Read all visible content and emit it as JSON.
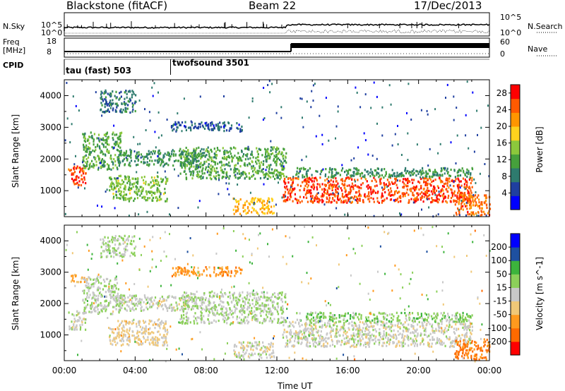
{
  "header": {
    "station": "Blackstone (fitACF)",
    "beam": "Beam 22",
    "date": "17/Dec/2013"
  },
  "summary_panel": {
    "nsky_label": "N.Sky",
    "nsearch_label": "N.Search",
    "freq_label_1": "Freq",
    "freq_label_2": "[MHz]",
    "nave_label": "Nave",
    "cpid_label": "CPID",
    "noise_ticks": [
      "10^5",
      "10^0"
    ],
    "noise_right_ticks": [
      "10^5",
      "10^0"
    ],
    "freq_ticks": [
      "18",
      "8"
    ],
    "nave_ticks": [
      "60",
      "0"
    ],
    "cpid_segments": [
      {
        "name": "tau (fast) 503",
        "start_hour": 0
      },
      {
        "name": "twofsound 3501",
        "start_hour": 6
      }
    ]
  },
  "chart_data": [
    {
      "type": "heatmap",
      "title": "",
      "xlabel": "Time UT",
      "ylabel": "Slant Range [km]",
      "xlim": [
        0,
        24
      ],
      "ylim": [
        180,
        4500
      ],
      "x_ticks": [
        "00:00",
        "04:00",
        "08:00",
        "12:00",
        "16:00",
        "20:00",
        "00:00"
      ],
      "y_ticks": [
        1000,
        2000,
        3000,
        4000
      ],
      "colorbar": {
        "label": "Power [dB]",
        "ticks": [
          4,
          8,
          12,
          16,
          20,
          24,
          28
        ],
        "range": [
          0,
          30
        ],
        "colors": [
          "#0000ff",
          "#1f3fa0",
          "#2e7b6e",
          "#46a03c",
          "#8cc83c",
          "#ffd21e",
          "#ff9600",
          "#ff5a00",
          "#ff0000"
        ]
      },
      "regions": [
        {
          "t0": 0.2,
          "t1": 1.2,
          "r0": 1200,
          "r1": 1800,
          "value": 26
        },
        {
          "t0": 1.0,
          "t1": 3.2,
          "r0": 1700,
          "r1": 2900,
          "value": 12
        },
        {
          "t0": 2.5,
          "t1": 5.8,
          "r0": 700,
          "r1": 1500,
          "value": 14
        },
        {
          "t0": 3.0,
          "t1": 7.5,
          "r0": 1800,
          "r1": 2300,
          "value": 10
        },
        {
          "t0": 6.0,
          "t1": 10.0,
          "r0": 2900,
          "r1": 3200,
          "value": 6
        },
        {
          "t0": 6.5,
          "t1": 12.5,
          "r0": 1400,
          "r1": 2400,
          "value": 12
        },
        {
          "t0": 9.5,
          "t1": 11.8,
          "r0": 300,
          "r1": 800,
          "value": 20
        },
        {
          "t0": 12.3,
          "t1": 23.0,
          "r0": 650,
          "r1": 1450,
          "value": 26
        },
        {
          "t0": 13.0,
          "t1": 23.0,
          "r0": 1450,
          "r1": 1750,
          "value": 10
        },
        {
          "t0": 22.0,
          "t1": 24.0,
          "r0": 250,
          "r1": 900,
          "value": 24
        },
        {
          "t0": 2.0,
          "t1": 4.0,
          "r0": 3500,
          "r1": 4200,
          "value": 8
        }
      ]
    },
    {
      "type": "heatmap",
      "title": "",
      "xlabel": "Time UT",
      "ylabel": "Slant Range [km]",
      "xlim": [
        0,
        24
      ],
      "ylim": [
        180,
        4500
      ],
      "x_ticks": [
        "00:00",
        "04:00",
        "08:00",
        "12:00",
        "16:00",
        "20:00",
        "00:00"
      ],
      "y_ticks": [
        1000,
        2000,
        3000,
        4000
      ],
      "colorbar": {
        "label": "Velocity [m s^-1]",
        "ticks": [
          200,
          100,
          50,
          15,
          -15,
          -50,
          -100,
          -200
        ],
        "range": [
          -250,
          250
        ],
        "colors": [
          "#ff0000",
          "#ff6a00",
          "#ff9a1e",
          "#f0c878",
          "#c8c8c8",
          "#8cd05a",
          "#3cb43c",
          "#1e50a0",
          "#0000ff"
        ]
      },
      "regions": [
        {
          "t0": 0.2,
          "t1": 1.2,
          "r0": 1200,
          "r1": 1800,
          "value": 0
        },
        {
          "t0": 0.3,
          "t1": 1.3,
          "r0": 2700,
          "r1": 2950,
          "value": -90
        },
        {
          "t0": 1.0,
          "t1": 3.2,
          "r0": 1700,
          "r1": 2900,
          "value": 20
        },
        {
          "t0": 2.5,
          "t1": 5.8,
          "r0": 700,
          "r1": 1500,
          "value": -40
        },
        {
          "t0": 3.0,
          "t1": 7.5,
          "r0": 1800,
          "r1": 2300,
          "value": 10
        },
        {
          "t0": 6.0,
          "t1": 10.0,
          "r0": 2900,
          "r1": 3200,
          "value": -120
        },
        {
          "t0": 6.5,
          "t1": 12.5,
          "r0": 1400,
          "r1": 2400,
          "value": 25
        },
        {
          "t0": 9.5,
          "t1": 11.8,
          "r0": 300,
          "r1": 800,
          "value": 0
        },
        {
          "t0": 12.3,
          "t1": 23.0,
          "r0": 650,
          "r1": 1450,
          "value": 0
        },
        {
          "t0": 13.0,
          "t1": 23.0,
          "r0": 1450,
          "r1": 1750,
          "value": 60
        },
        {
          "t0": 22.0,
          "t1": 24.0,
          "r0": 250,
          "r1": 900,
          "value": -150
        },
        {
          "t0": 2.0,
          "t1": 4.0,
          "r0": 3500,
          "r1": 4200,
          "value": 30
        }
      ]
    }
  ]
}
